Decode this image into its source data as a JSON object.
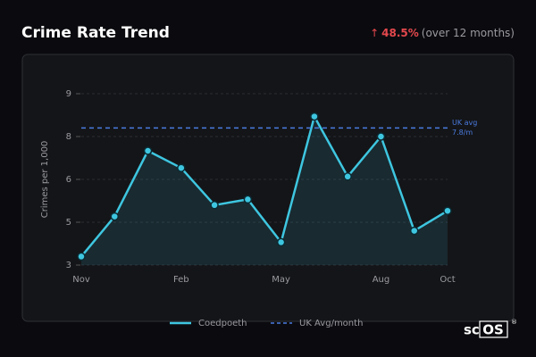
{
  "header": {
    "title": "Crime Rate Trend",
    "arrow": "↑",
    "change": "48.5%",
    "period": "(over 12 months)"
  },
  "chart_data": {
    "type": "line",
    "ylabel": "Crimes per 1,000",
    "categories": [
      "Nov",
      null,
      null,
      "Feb",
      null,
      null,
      "May",
      null,
      null,
      "Aug",
      null,
      "Oct"
    ],
    "series": [
      {
        "name": "Coedpoeth",
        "color": "#3ec6e0",
        "values": [
          3.3,
          4.7,
          7.0,
          6.4,
          5.1,
          5.3,
          3.8,
          8.2,
          6.1,
          7.5,
          4.2,
          4.9
        ]
      }
    ],
    "reference": {
      "name": "UK Avg/month",
      "color": "#4a7be0",
      "value": 7.8,
      "label": "UK avg",
      "value_label": "7.8/m"
    },
    "ylim": [
      3,
      9
    ],
    "yticks": [
      3,
      {
        "value": 4.5,
        "label": "5"
      },
      6,
      {
        "value": 7.5,
        "label": "8"
      },
      9
    ],
    "grid": true
  },
  "branding": {
    "left": "sc",
    "boxed": "OS",
    "mark": "®"
  }
}
